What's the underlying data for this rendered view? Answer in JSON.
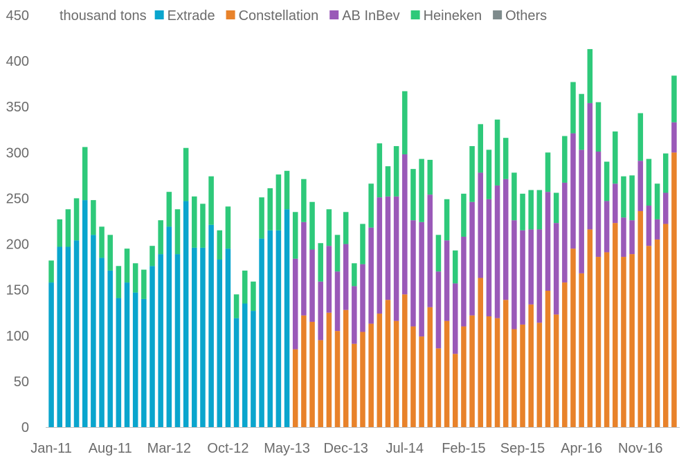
{
  "chart_data": {
    "type": "bar",
    "stacked": true,
    "title": "",
    "ylabel": "thousand tons",
    "xlabel": "",
    "ylim": [
      0,
      450
    ],
    "yticks": [
      0,
      50,
      100,
      150,
      200,
      250,
      300,
      350,
      400,
      450
    ],
    "grid": false,
    "legend_position": "top",
    "x_tick_labels": [
      {
        "label": "Jan-11",
        "index": 0
      },
      {
        "label": "Aug-11",
        "index": 7
      },
      {
        "label": "Mar-12",
        "index": 14
      },
      {
        "label": "Oct-12",
        "index": 21
      },
      {
        "label": "May-13",
        "index": 28
      },
      {
        "label": "Dec-13",
        "index": 35
      },
      {
        "label": "Jul-14",
        "index": 42
      },
      {
        "label": "Feb-15",
        "index": 49
      },
      {
        "label": "Sep-15",
        "index": 56
      },
      {
        "label": "Apr-16",
        "index": 63
      },
      {
        "label": "Nov-16",
        "index": 70
      }
    ],
    "num_bars": 75,
    "first_period": "Jan-11",
    "last_period": "Mar-17",
    "series": [
      {
        "name": "Extrade",
        "color": "#0aa5cd",
        "values": [
          158,
          197,
          197,
          204,
          248,
          210,
          185,
          171,
          141,
          158,
          147,
          140,
          176,
          189,
          219,
          189,
          247,
          196,
          196,
          221,
          183,
          195,
          119,
          135,
          127,
          206,
          215,
          215,
          238,
          0,
          0,
          0,
          0,
          0,
          0,
          0,
          0,
          0,
          0,
          0,
          0,
          0,
          0,
          0,
          0,
          0,
          0,
          0,
          0,
          0,
          0,
          0,
          0,
          0,
          0,
          0,
          0,
          0,
          0,
          0,
          0,
          0,
          0,
          0,
          0,
          0,
          0,
          0,
          0,
          0,
          0,
          0,
          0,
          0,
          0
        ]
      },
      {
        "name": "Constellation",
        "color": "#e8822a",
        "values": [
          0,
          0,
          0,
          0,
          0,
          0,
          0,
          0,
          0,
          0,
          0,
          0,
          0,
          0,
          0,
          0,
          0,
          0,
          0,
          0,
          0,
          0,
          0,
          0,
          0,
          0,
          0,
          0,
          0,
          85,
          122,
          115,
          95,
          125,
          105,
          128,
          91,
          104,
          113,
          124,
          139,
          116,
          145,
          110,
          99,
          131,
          86,
          116,
          80,
          110,
          122,
          163,
          121,
          119,
          139,
          107,
          112,
          134,
          114,
          149,
          123,
          158,
          195,
          168,
          216,
          186,
          191,
          223,
          186,
          189,
          236,
          198,
          205,
          222,
          300
        ]
      },
      {
        "name": "AB InBev",
        "color": "#9a59b8",
        "values": [
          0,
          0,
          0,
          0,
          0,
          0,
          0,
          0,
          0,
          0,
          0,
          0,
          0,
          0,
          0,
          0,
          0,
          0,
          0,
          0,
          0,
          0,
          0,
          0,
          0,
          0,
          0,
          0,
          0,
          99,
          102,
          79,
          64,
          73,
          65,
          72,
          63,
          74,
          105,
          127,
          113,
          136,
          153,
          116,
          125,
          123,
          84,
          88,
          77,
          98,
          124,
          115,
          128,
          145,
          132,
          119,
          103,
          82,
          102,
          108,
          100,
          109,
          126,
          135,
          138,
          115,
          56,
          43,
          43,
          37,
          55,
          44,
          22,
          34,
          33
        ]
      },
      {
        "name": "Heineken",
        "color": "#2ec97a",
        "values": [
          24,
          30,
          41,
          46,
          58,
          38,
          34,
          39,
          35,
          37,
          32,
          32,
          22,
          37,
          38,
          49,
          58,
          56,
          48,
          53,
          32,
          46,
          26,
          36,
          32,
          45,
          46,
          61,
          42,
          51,
          47,
          52,
          42,
          40,
          40,
          35,
          25,
          44,
          48,
          59,
          33,
          55,
          69,
          56,
          69,
          38,
          40,
          45,
          36,
          47,
          61,
          53,
          54,
          72,
          45,
          52,
          40,
          43,
          43,
          43,
          33,
          51,
          56,
          61,
          59,
          54,
          43,
          57,
          45,
          49,
          52,
          51,
          39,
          43,
          51
        ]
      },
      {
        "name": "Others",
        "color": "#7e8b8c",
        "values": [
          0,
          0,
          0,
          0,
          0,
          0,
          0,
          0,
          0,
          0,
          0,
          0,
          0,
          0,
          0,
          0,
          0,
          0,
          0,
          0,
          0,
          0,
          0,
          0,
          0,
          0,
          0,
          0,
          0,
          0,
          0,
          0,
          0,
          0,
          0,
          0,
          0,
          0,
          0,
          0,
          0,
          0,
          0,
          0,
          0,
          0,
          0,
          0,
          0,
          0,
          0,
          0,
          0,
          0,
          0,
          0,
          0,
          0,
          0,
          0,
          0,
          0,
          0,
          0,
          0,
          0,
          0,
          0,
          0,
          0,
          0,
          0,
          0,
          0,
          0
        ]
      }
    ]
  }
}
